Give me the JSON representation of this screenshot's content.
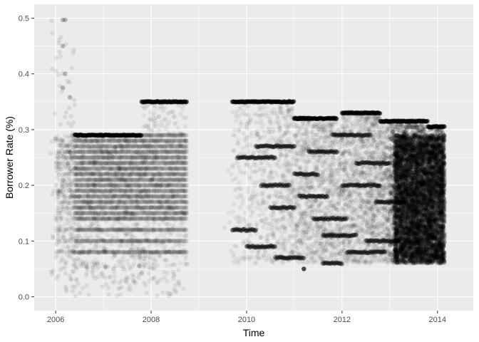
{
  "chart_data": {
    "type": "scatter",
    "title": "",
    "xlabel": "Time",
    "ylabel": "Borrower Rate (%)",
    "xlim": [
      2005.55,
      2014.75
    ],
    "ylim": [
      -0.025,
      0.525
    ],
    "x_ticks": [
      2006,
      2008,
      2010,
      2012,
      2014
    ],
    "x_tick_labels": [
      "2006",
      "2008",
      "2010",
      "2012",
      "2014"
    ],
    "y_ticks": [
      0.0,
      0.1,
      0.2,
      0.3,
      0.4,
      0.5
    ],
    "y_tick_labels": [
      "0.0",
      "0.1",
      "0.2",
      "0.3",
      "0.4",
      "0.5"
    ],
    "grid": true,
    "point_color": "#000000",
    "point_alpha": 0.05,
    "panel_background": "#ebebeb",
    "grid_color": "#ffffff",
    "series": [
      {
        "regime": "2005-11 to 2008-10",
        "x_range": [
          2005.9,
          2008.8
        ],
        "typical_rate_range": [
          0.06,
          0.3
        ],
        "dense_rate_lines": [
          0.08,
          0.1,
          0.12,
          0.14,
          0.15,
          0.16,
          0.17,
          0.18,
          0.19,
          0.2,
          0.21,
          0.22,
          0.23,
          0.24,
          0.25,
          0.26,
          0.27,
          0.28,
          0.29
        ],
        "ceiling_segments": [
          {
            "x": [
              2006.4,
              2007.8
            ],
            "y": 0.29
          },
          {
            "x": [
              2007.8,
              2008.75
            ],
            "y": 0.35
          }
        ],
        "outlier_max": 0.497
      },
      {
        "regime": "2009-05 to 2014-03",
        "x_range": [
          2009.4,
          2014.15
        ],
        "typical_rate_range": [
          0.06,
          0.35
        ],
        "ceiling_segments": [
          {
            "x": [
              2009.7,
              2011.0
            ],
            "y": 0.35
          },
          {
            "x": [
              2011.0,
              2011.9
            ],
            "y": 0.32
          },
          {
            "x": [
              2012.0,
              2012.8
            ],
            "y": 0.33
          },
          {
            "x": [
              2012.8,
              2013.8
            ],
            "y": 0.315
          },
          {
            "x": [
              2013.8,
              2014.15
            ],
            "y": 0.305
          }
        ],
        "floor": 0.05
      }
    ]
  }
}
